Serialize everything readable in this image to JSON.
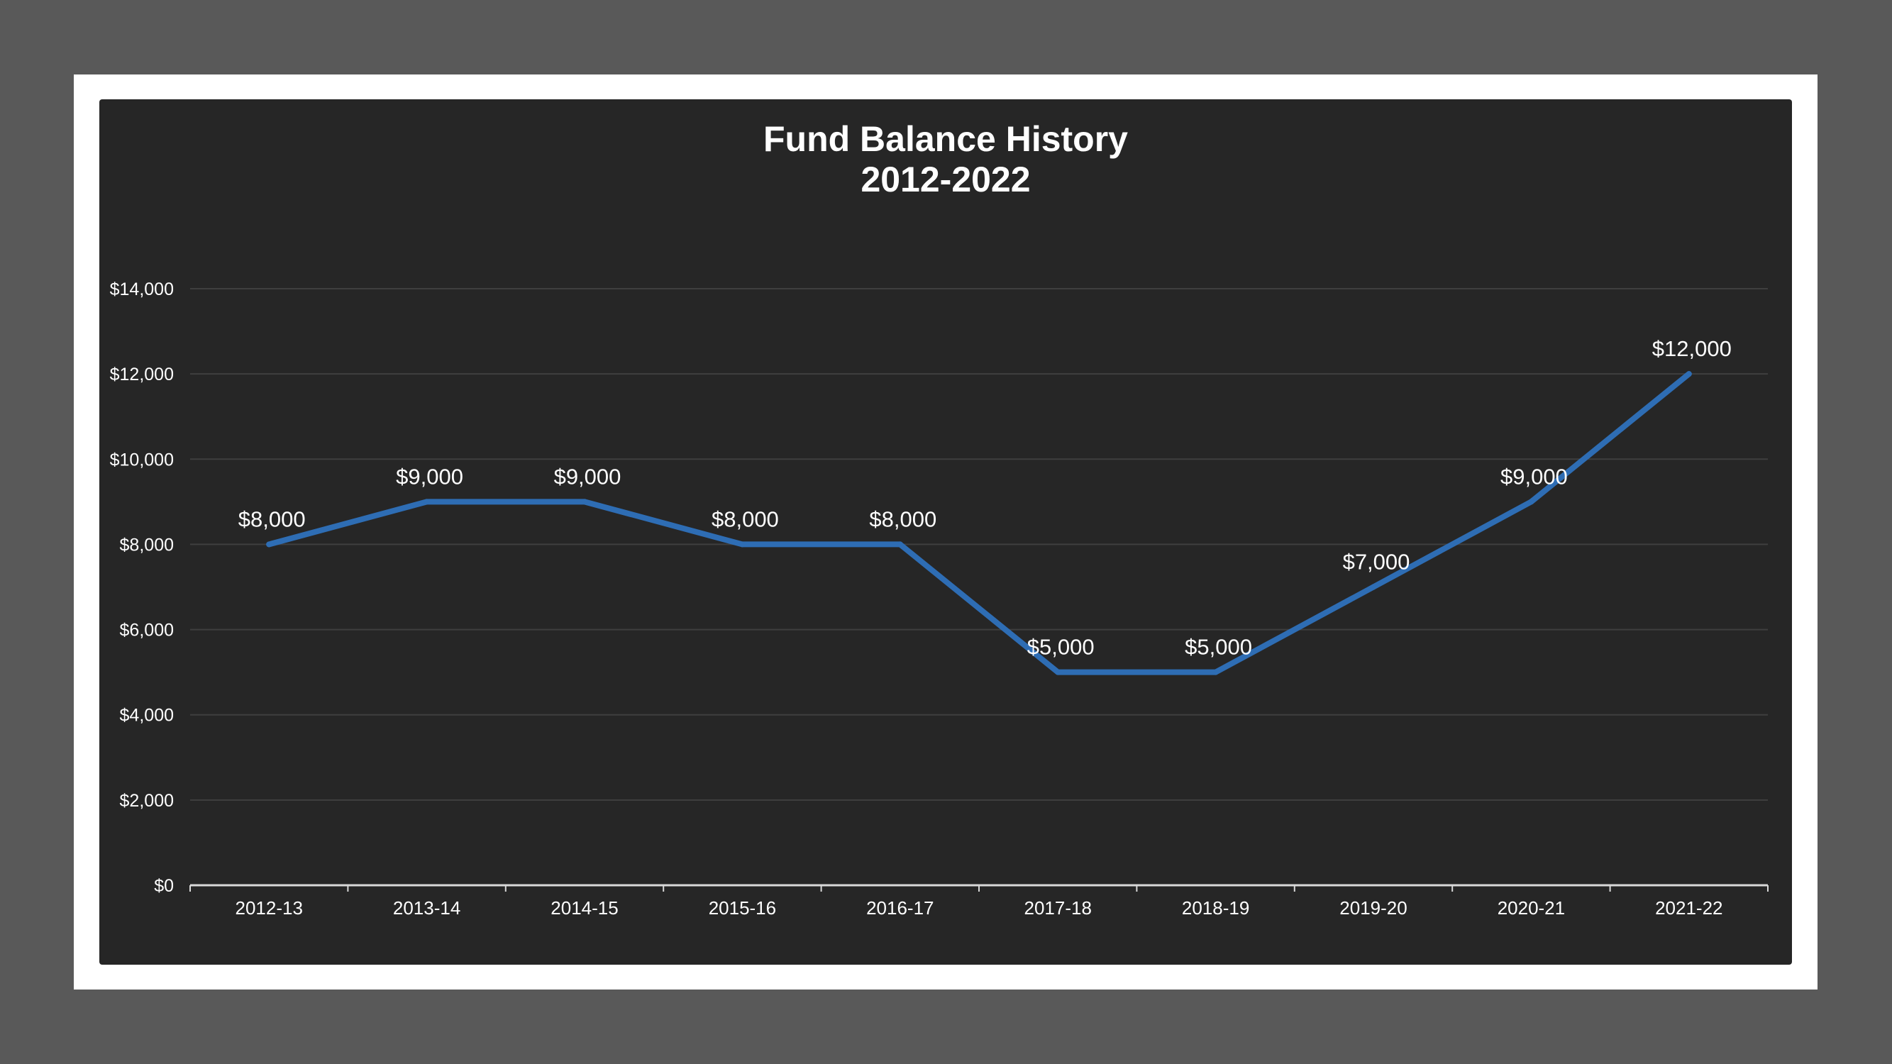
{
  "chart_data": {
    "type": "line",
    "title": [
      "Fund Balance History",
      "2012-2022"
    ],
    "xlabel": "",
    "ylabel": "",
    "categories": [
      "2012-13",
      "2013-14",
      "2014-15",
      "2015-16",
      "2016-17",
      "2017-18",
      "2018-19",
      "2019-20",
      "2020-21",
      "2021-22"
    ],
    "series": [
      {
        "values": [
          8000,
          9000,
          9000,
          8000,
          8000,
          5000,
          5000,
          7000,
          9000,
          12000
        ],
        "data_labels": [
          "$8,000",
          "$9,000",
          "$9,000",
          "$8,000",
          "$8,000",
          "$5,000",
          "$5,000",
          "$7,000",
          "$9,000",
          "$12,000"
        ],
        "color": "#2E6DB4"
      }
    ],
    "ylim": [
      0,
      14000
    ],
    "yticks": [
      0,
      2000,
      4000,
      6000,
      8000,
      10000,
      12000,
      14000
    ],
    "ytick_labels": [
      "$0",
      "$2,000",
      "$4,000",
      "$6,000",
      "$8,000",
      "$10,000",
      "$12,000",
      "$14,000"
    ],
    "grid": true,
    "legend": "none",
    "colors": {
      "background": "#262626",
      "frame": "#ffffff",
      "page": "#595959",
      "gridline": "#3f3f3f",
      "text": "#ffffff"
    }
  }
}
